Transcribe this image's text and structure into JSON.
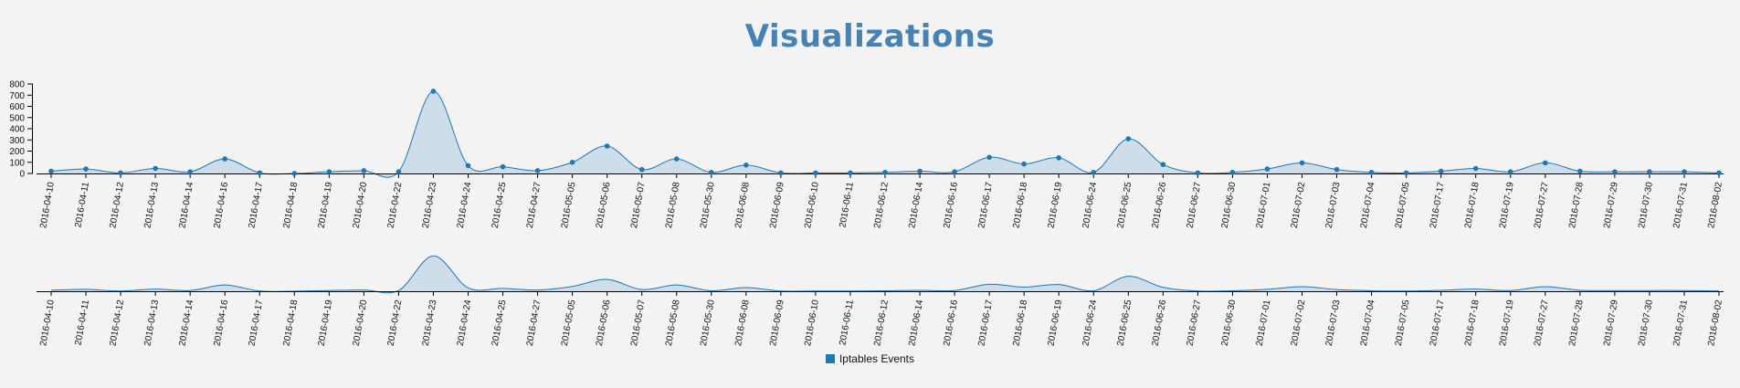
{
  "page": {
    "title": "Visualizations"
  },
  "colors": {
    "series": "#1f77b4",
    "fill": "#c6d8e8",
    "axis": "#000000",
    "title": "#4682b4"
  },
  "chart_data": {
    "type": "area",
    "x": [
      "2016-04-10",
      "2016-04-11",
      "2016-04-12",
      "2016-04-13",
      "2016-04-14",
      "2016-04-16",
      "2016-04-17",
      "2016-04-18",
      "2016-04-19",
      "2016-04-20",
      "2016-04-22",
      "2016-04-23",
      "2016-04-24",
      "2016-04-25",
      "2016-04-27",
      "2016-05-05",
      "2016-05-06",
      "2016-05-07",
      "2016-05-08",
      "2016-05-30",
      "2016-06-08",
      "2016-06-09",
      "2016-06-10",
      "2016-06-11",
      "2016-06-12",
      "2016-06-14",
      "2016-06-16",
      "2016-06-17",
      "2016-06-18",
      "2016-06-19",
      "2016-06-24",
      "2016-06-25",
      "2016-06-26",
      "2016-06-27",
      "2016-06-30",
      "2016-07-01",
      "2016-07-02",
      "2016-07-03",
      "2016-07-04",
      "2016-07-05",
      "2016-07-17",
      "2016-07-18",
      "2016-07-19",
      "2016-07-27",
      "2016-07-28",
      "2016-07-29",
      "2016-07-30",
      "2016-07-31",
      "2016-08-02"
    ],
    "series": [
      {
        "name": "Iptables Events",
        "values": [
          20,
          40,
          5,
          45,
          15,
          130,
          5,
          0,
          15,
          25,
          15,
          735,
          70,
          60,
          25,
          100,
          245,
          35,
          130,
          10,
          75,
          5,
          5,
          5,
          10,
          20,
          15,
          145,
          85,
          140,
          10,
          310,
          80,
          5,
          10,
          40,
          95,
          35,
          10,
          5,
          20,
          45,
          15,
          95,
          20,
          15,
          15,
          15,
          5
        ]
      }
    ],
    "ylim": [
      0,
      800
    ],
    "yticks": [
      0,
      100,
      200,
      300,
      400,
      500,
      600,
      700,
      800
    ],
    "context_ylim": [
      0,
      1500
    ],
    "legend": "bottom-center",
    "grid": false
  }
}
